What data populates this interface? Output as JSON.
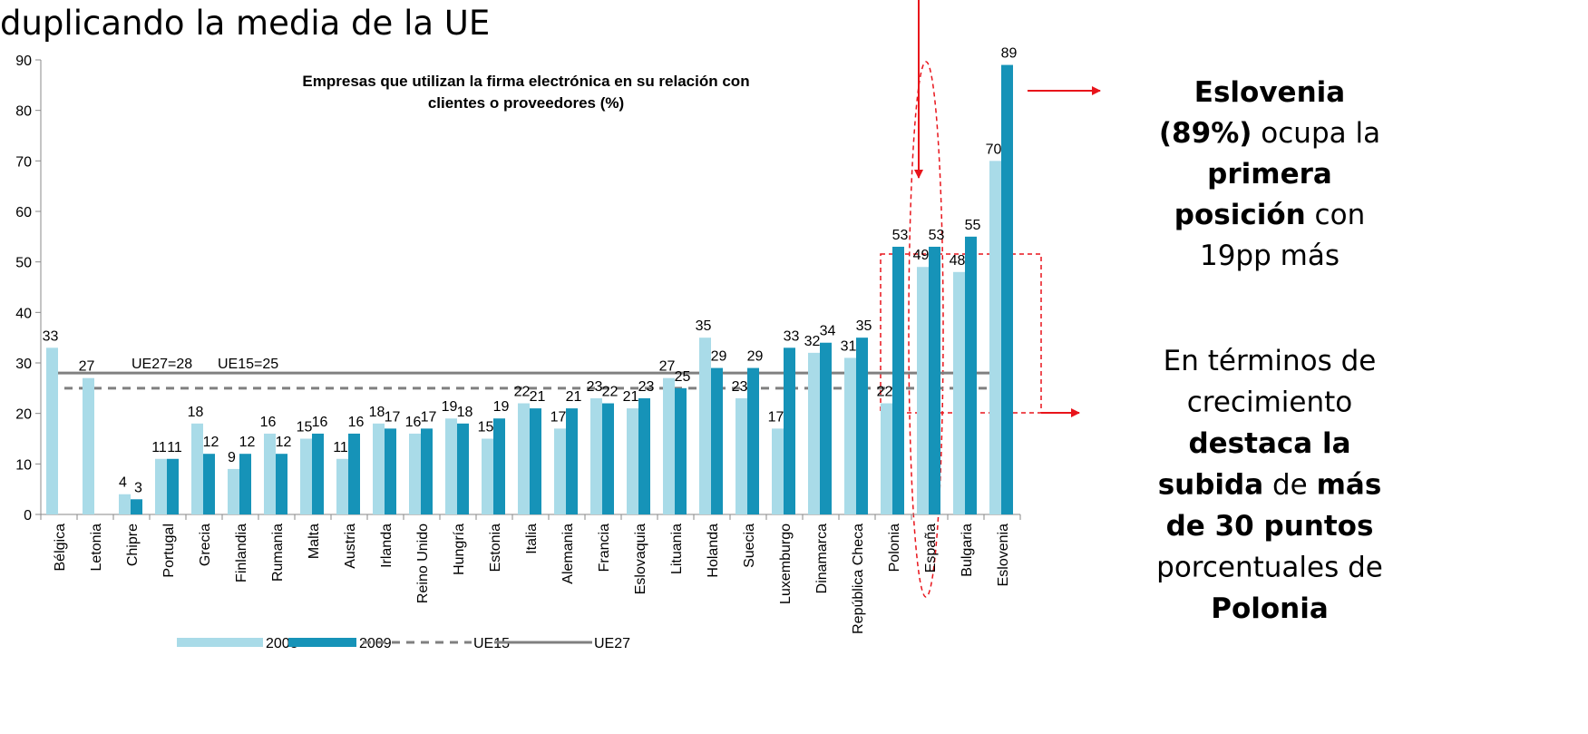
{
  "heading": "duplicando la media de la UE",
  "chart_data": {
    "type": "bar",
    "title": "Empresas que utilizan la firma electrónica en su relación con clientes o proveedores (%)",
    "title_lines": [
      "Empresas que utilizan la firma electrónica en su relación con",
      "clientes o proveedores (%)"
    ],
    "categories": [
      "Bélgica",
      "Letonia",
      "Chipre",
      "Portugal",
      "Grecia",
      "Finlandia",
      "Rumania",
      "Malta",
      "Austria",
      "Irlanda",
      "Reino Unido",
      "Hungría",
      "Estonia",
      "Italia",
      "Alemania",
      "Francia",
      "Eslovaquia",
      "Lituania",
      "Holanda",
      "Suecia",
      "Luxemburgo",
      "Dinamarca",
      "República Checa",
      "Polonia",
      "España",
      "Bulgaria",
      "Eslovenia"
    ],
    "series": [
      {
        "name": "2008",
        "color": "#a9dbe8",
        "values": [
          33,
          27,
          4,
          11,
          18,
          9,
          16,
          15,
          11,
          18,
          16,
          19,
          15,
          22,
          17,
          23,
          21,
          27,
          35,
          23,
          17,
          32,
          31,
          22,
          49,
          48,
          70
        ]
      },
      {
        "name": "2009",
        "color": "#1693b8",
        "values": [
          null,
          null,
          3,
          11,
          12,
          12,
          12,
          16,
          16,
          17,
          17,
          18,
          19,
          21,
          21,
          22,
          23,
          25,
          29,
          29,
          33,
          34,
          35,
          53,
          53,
          55,
          89
        ]
      }
    ],
    "reference_lines": [
      {
        "name": "UE15",
        "value": 25,
        "label": "UE15=25",
        "color": "#808080",
        "style": "dashed"
      },
      {
        "name": "UE27",
        "value": 28,
        "label": "UE27=28",
        "color": "#808080",
        "style": "solid"
      }
    ],
    "ylim": [
      0,
      90
    ],
    "yticks": [
      0,
      10,
      20,
      30,
      40,
      50,
      60,
      70,
      80,
      90
    ],
    "legend": "bottom"
  },
  "annotations": [
    {
      "lines": [
        [
          {
            "text": "Eslovenia",
            "bold": true
          }
        ],
        [
          {
            "text": "(89%)",
            "bold": true
          },
          {
            "text": " ocupa la",
            "bold": false
          }
        ],
        [
          {
            "text": "primera",
            "bold": true
          }
        ],
        [
          {
            "text": "posición",
            "bold": true
          },
          {
            "text": " con",
            "bold": false
          }
        ],
        [
          {
            "text": "19pp más",
            "bold": false
          }
        ]
      ]
    },
    {
      "lines": [
        [
          {
            "text": "En términos de",
            "bold": false
          }
        ],
        [
          {
            "text": "crecimiento",
            "bold": false
          }
        ],
        [
          {
            "text": "destaca la",
            "bold": true
          }
        ],
        [
          {
            "text": "subida",
            "bold": true
          },
          {
            "text": " de ",
            "bold": false
          },
          {
            "text": "más",
            "bold": true
          }
        ],
        [
          {
            "text": "de 30 puntos",
            "bold": true
          }
        ],
        [
          {
            "text": "porcentuales de",
            "bold": false
          }
        ],
        [
          {
            "text": "Polonia",
            "bold": true
          }
        ]
      ]
    }
  ]
}
